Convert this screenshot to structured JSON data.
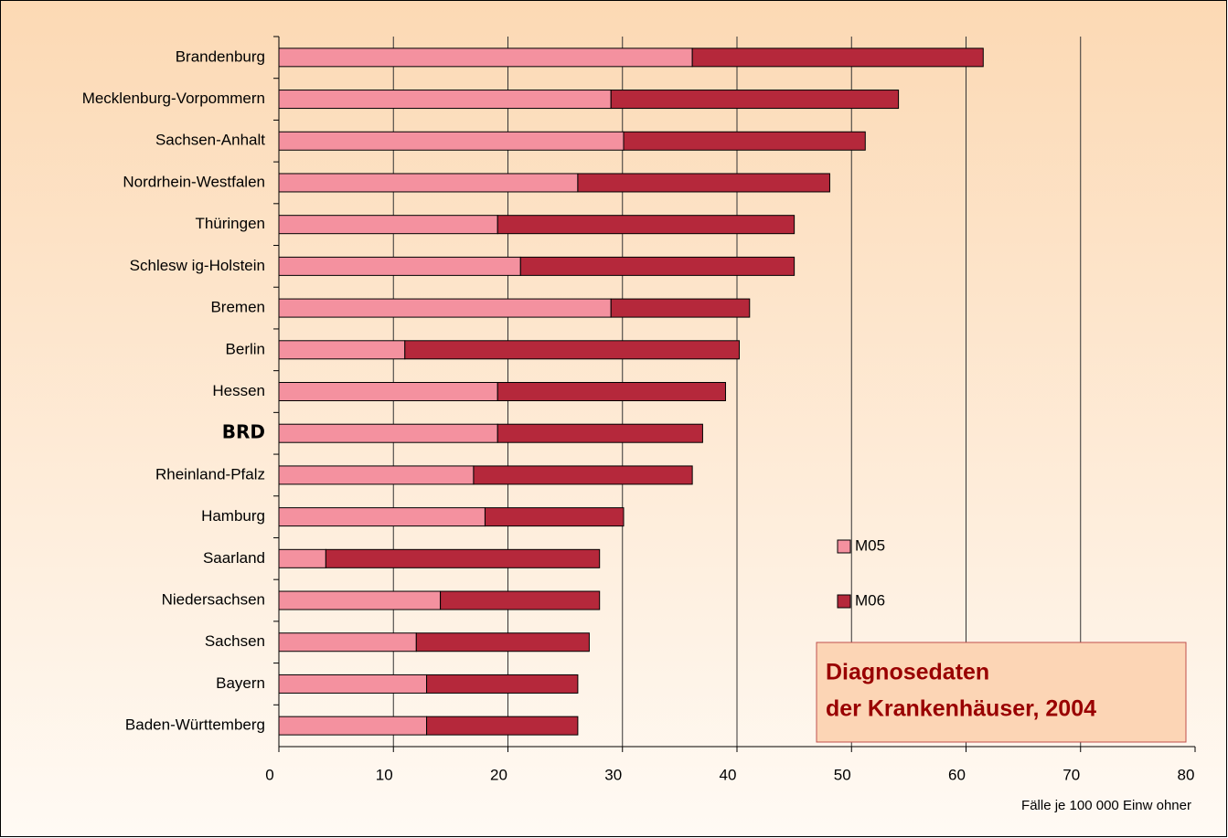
{
  "chart_data": {
    "type": "stacked_hbar",
    "title": "Diagnosedaten der Krankenhäuser, 2004",
    "title_lines": [
      "Diagnosedaten",
      "der Krankenhäuser, 2004"
    ],
    "x_label": "Fälle je 100 000 Einw ohner",
    "categories": [
      "Brandenburg",
      "Mecklenburg-Vorpommern",
      "Sachsen-Anhalt",
      "Nordrhein-Westfalen",
      "Thüringen",
      "Schlesw ig-Holstein",
      "Bremen",
      "Berlin",
      "Hessen",
      "BRD",
      "Rheinland-Pfalz",
      "Hamburg",
      "Saarland",
      "Niedersachsen",
      "Sachsen",
      "Bayern",
      "Baden-Württemberg"
    ],
    "highlight_category": 9,
    "series": [
      {
        "name": "M05",
        "color": "#f4919f",
        "values": [
          36.1,
          29.0,
          30.1,
          26.1,
          19.1,
          21.1,
          29.0,
          11.0,
          19.1,
          19.1,
          17.0,
          18.0,
          4.1,
          14.1,
          12.0,
          12.9,
          12.9
        ]
      },
      {
        "name": "M06",
        "color": "#b5283b",
        "values": [
          25.4,
          25.1,
          21.1,
          22.0,
          25.9,
          23.9,
          12.1,
          29.2,
          19.9,
          17.9,
          19.1,
          12.1,
          23.9,
          13.9,
          15.1,
          13.2,
          13.2
        ]
      }
    ],
    "xlim": [
      0,
      80
    ],
    "xticks": [
      0,
      10,
      20,
      30,
      40,
      50,
      60,
      70,
      80
    ],
    "grid": true
  }
}
